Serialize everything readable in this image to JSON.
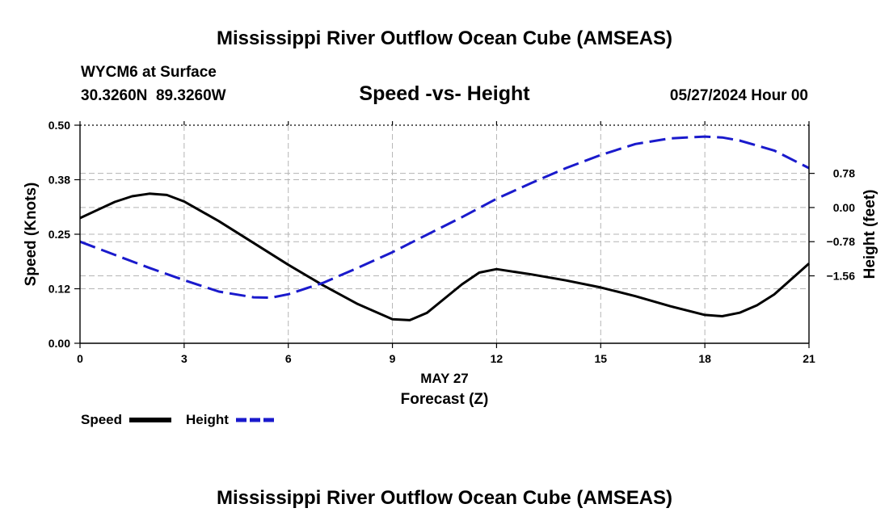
{
  "titles": {
    "main": "Mississippi River Outflow Ocean Cube (AMSEAS)",
    "bottom": "Mississippi River Outflow Ocean Cube (AMSEAS)"
  },
  "station": {
    "name": "WYCM6 at Surface",
    "coords": "30.3260N  89.3260W",
    "datetime": "05/27/2024 Hour 00"
  },
  "chart_data": {
    "type": "line",
    "title": "Speed -vs- Height",
    "xlabel": "Forecast (Z)",
    "xlabel_date": "MAY 27",
    "ylabel": "Speed (Knots)",
    "y2label": "Height (feet)",
    "xlim": [
      0,
      21
    ],
    "ylim": [
      0,
      0.5
    ],
    "y2lim": [
      -3.1,
      1.88
    ],
    "x_ticks": [
      0,
      3,
      6,
      9,
      12,
      15,
      18,
      21
    ],
    "x_tick_labels": [
      "0",
      "3",
      "6",
      "9",
      "12",
      "15",
      "18",
      "21"
    ],
    "y_ticks": [
      0.0,
      0.125,
      0.25,
      0.375,
      0.5
    ],
    "y_tick_labels": [
      "0.00",
      "0.12",
      "0.25",
      "0.38",
      "0.50"
    ],
    "y2_ticks": [
      -1.56,
      -0.78,
      0.0,
      0.78
    ],
    "y2_tick_labels": [
      "−1.56",
      "−0.78",
      "0.00",
      "0.78"
    ],
    "grid": true,
    "series": [
      {
        "name": "Speed",
        "axis": "left",
        "color": "#000000",
        "style": "solid",
        "x": [
          0,
          1,
          1.5,
          2,
          2.5,
          3,
          4,
          5,
          6,
          7,
          8,
          9,
          9.5,
          10,
          11,
          11.5,
          12,
          13,
          14,
          15,
          16,
          17,
          18,
          18.5,
          19,
          19.5,
          20,
          21
        ],
        "y": [
          0.287,
          0.324,
          0.337,
          0.343,
          0.34,
          0.325,
          0.28,
          0.23,
          0.18,
          0.133,
          0.09,
          0.055,
          0.053,
          0.07,
          0.135,
          0.162,
          0.17,
          0.158,
          0.144,
          0.128,
          0.108,
          0.085,
          0.065,
          0.062,
          0.07,
          0.087,
          0.112,
          0.183
        ]
      },
      {
        "name": "Height",
        "axis": "right",
        "color": "#1a1acc",
        "style": "dashed",
        "x": [
          0,
          1,
          2,
          3,
          4,
          5,
          5.5,
          6,
          7,
          8,
          9,
          10,
          11,
          12,
          13,
          14,
          15,
          16,
          17,
          18,
          18.5,
          19,
          20,
          21
        ],
        "y": [
          -0.78,
          -1.08,
          -1.38,
          -1.66,
          -1.92,
          -2.05,
          -2.06,
          -1.98,
          -1.72,
          -1.38,
          -1.02,
          -0.62,
          -0.22,
          0.2,
          0.56,
          0.9,
          1.2,
          1.45,
          1.58,
          1.62,
          1.6,
          1.53,
          1.3,
          0.9
        ]
      }
    ]
  },
  "legend": {
    "speed_label": "Speed",
    "height_label": "Height"
  }
}
